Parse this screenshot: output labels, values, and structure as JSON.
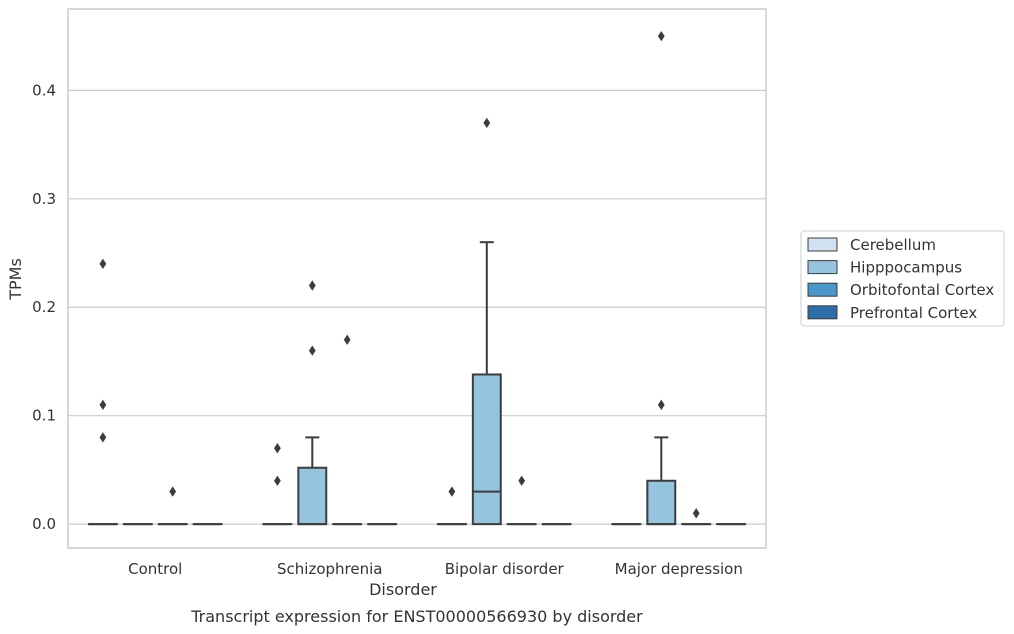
{
  "chart_data": {
    "type": "box",
    "xlabel": "Disorder",
    "ylabel": "TPMs",
    "caption": "Transcript expression for ENST00000566930 by disorder",
    "categories": [
      "Control",
      "Schizophrenia",
      "Bipolar disorder",
      "Major depression"
    ],
    "ylim": [
      -0.022,
      0.475
    ],
    "yticks": [
      0.0,
      0.1,
      0.2,
      0.3,
      0.4
    ],
    "ytick_labels": [
      "0.0",
      "0.1",
      "0.2",
      "0.3",
      "0.4"
    ],
    "grid": true,
    "legend_position": "right",
    "series": [
      {
        "name": "Cerebellum",
        "color": "#d0e1f2",
        "boxes": [
          {
            "q1": 0,
            "median": 0,
            "q3": 0,
            "whisker_low": 0,
            "whisker_high": 0,
            "outliers": [
              0.24,
              0.11,
              0.08
            ]
          },
          {
            "q1": 0,
            "median": 0,
            "q3": 0,
            "whisker_low": 0,
            "whisker_high": 0,
            "outliers": [
              0.07,
              0.04
            ]
          },
          {
            "q1": 0,
            "median": 0,
            "q3": 0,
            "whisker_low": 0,
            "whisker_high": 0,
            "outliers": [
              0.03
            ]
          },
          {
            "q1": 0,
            "median": 0,
            "q3": 0,
            "whisker_low": 0,
            "whisker_high": 0,
            "outliers": []
          }
        ]
      },
      {
        "name": "Hipppocampus",
        "color": "#94c4df",
        "boxes": [
          {
            "q1": 0,
            "median": 0,
            "q3": 0,
            "whisker_low": 0,
            "whisker_high": 0,
            "outliers": []
          },
          {
            "q1": 0,
            "median": 0,
            "q3": 0.052,
            "whisker_low": 0,
            "whisker_high": 0.08,
            "outliers": [
              0.22,
              0.16
            ]
          },
          {
            "q1": 0,
            "median": 0.03,
            "q3": 0.138,
            "whisker_low": 0,
            "whisker_high": 0.26,
            "outliers": [
              0.37
            ]
          },
          {
            "q1": 0,
            "median": 0,
            "q3": 0.04,
            "whisker_low": 0,
            "whisker_high": 0.08,
            "outliers": [
              0.45,
              0.11
            ]
          }
        ]
      },
      {
        "name": "Orbitofontal Cortex",
        "color": "#4a98c9",
        "boxes": [
          {
            "q1": 0,
            "median": 0,
            "q3": 0,
            "whisker_low": 0,
            "whisker_high": 0,
            "outliers": [
              0.03
            ]
          },
          {
            "q1": 0,
            "median": 0,
            "q3": 0,
            "whisker_low": 0,
            "whisker_high": 0,
            "outliers": [
              0.17
            ]
          },
          {
            "q1": 0,
            "median": 0,
            "q3": 0,
            "whisker_low": 0,
            "whisker_high": 0,
            "outliers": [
              0.04
            ]
          },
          {
            "q1": 0,
            "median": 0,
            "q3": 0,
            "whisker_low": 0,
            "whisker_high": 0,
            "outliers": [
              0.01
            ]
          }
        ]
      },
      {
        "name": "Prefrontal Cortex",
        "color": "#2e6ea6",
        "boxes": [
          {
            "q1": 0,
            "median": 0,
            "q3": 0,
            "whisker_low": 0,
            "whisker_high": 0,
            "outliers": []
          },
          {
            "q1": 0,
            "median": 0,
            "q3": 0,
            "whisker_low": 0,
            "whisker_high": 0,
            "outliers": []
          },
          {
            "q1": 0,
            "median": 0,
            "q3": 0,
            "whisker_low": 0,
            "whisker_high": 0,
            "outliers": []
          },
          {
            "q1": 0,
            "median": 0,
            "q3": 0,
            "whisker_low": 0,
            "whisker_high": 0,
            "outliers": []
          }
        ]
      }
    ]
  }
}
